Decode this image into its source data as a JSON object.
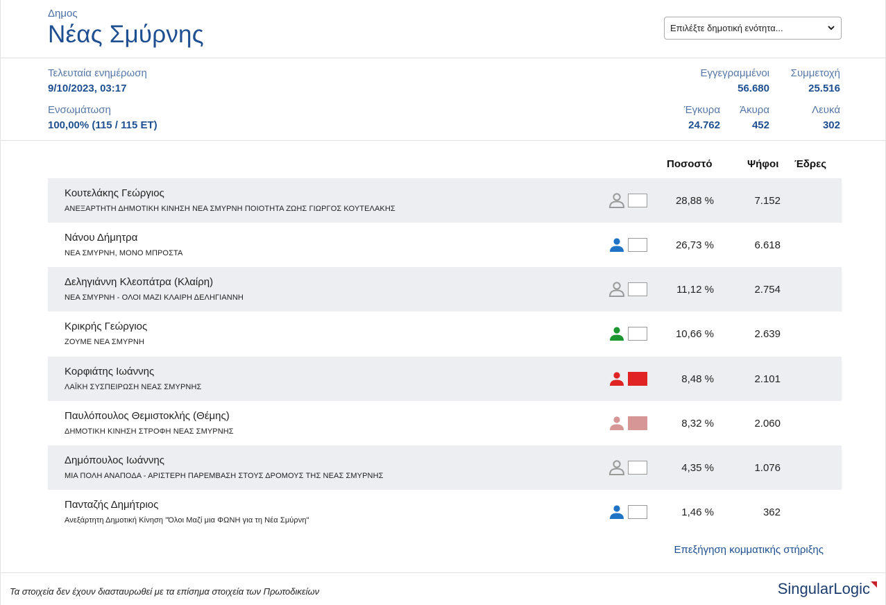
{
  "header": {
    "kind": "Δημος",
    "title": "Νέας Σμύρνης",
    "select_value": "Επιλέξτε δημοτική ενότητα..."
  },
  "stats": {
    "updated_label": "Τελευταία ενημέρωση",
    "updated_value": "9/10/2023, 03:17",
    "counted_label": "Ενσωμάτωση",
    "counted_value": "100,00% (115 / 115 ΕΤ)",
    "registered_label": "Εγγεγραμμένοι",
    "registered_value": "56.680",
    "turnout_label": "Συμμετοχή",
    "turnout_value": "25.516",
    "valid_label": "Έγκυρα",
    "valid_value": "24.762",
    "invalid_label": "Άκυρα",
    "invalid_value": "452",
    "blank_label": "Λευκά",
    "blank_value": "302"
  },
  "table": {
    "headers": {
      "percent": "Ποσοστό",
      "votes": "Ψήφοι",
      "seats": "Έδρες"
    },
    "rows": [
      {
        "name": "Κουτελάκης Γεώργιος",
        "party": "ΑΝΕΞΑΡΤΗΤΗ ΔΗΜΟΤΙΚΗ ΚΙΝΗΣΗ ΝΕΑ ΣΜΥΡΝΗ ΠΟΙΟΤΗΤΑ ΖΩΗΣ ΓΙΩΡΓΟΣ ΚΟΥΤΕΛΑΚΗΣ",
        "percent": "28,88 %",
        "votes": "7.152",
        "icon_color": "#9a9a9a",
        "icon_style": "outline",
        "swatch": "#ffffff"
      },
      {
        "name": "Νάνου Δήμητρα",
        "party": "ΝΕΑ ΣΜΥΡΝΗ, ΜΟΝΟ ΜΠΡΟΣΤΑ",
        "percent": "26,73 %",
        "votes": "6.618",
        "icon_color": "#1e73c7",
        "icon_style": "solid",
        "swatch": "#ffffff"
      },
      {
        "name": "Δεληγιάννη Κλεοπάτρα (Κλαίρη)",
        "party": "ΝΕΑ ΣΜΥΡΝΗ - ΟΛΟΙ ΜΑΖΙ ΚΛΑΙΡΗ ΔΕΛΗΓΙΑΝΝΗ",
        "percent": "11,12 %",
        "votes": "2.754",
        "icon_color": "#9a9a9a",
        "icon_style": "outline",
        "swatch": "#ffffff"
      },
      {
        "name": "Κρικρής Γεώργιος",
        "party": "ΖΟΥΜΕ ΝΕΑ ΣΜΥΡΝΗ",
        "percent": "10,66 %",
        "votes": "2.639",
        "icon_color": "#1b9630",
        "icon_style": "solid",
        "swatch": "#ffffff"
      },
      {
        "name": "Κορφιάτης Ιωάννης",
        "party": "ΛΑΪΚΗ ΣΥΣΠΕΙΡΩΣΗ ΝΕΑΣ ΣΜΥΡΝΗΣ",
        "percent": "8,48 %",
        "votes": "2.101",
        "icon_color": "#e02424",
        "icon_style": "solid",
        "swatch": "#e02424"
      },
      {
        "name": "Παυλόπουλος Θεμιστοκλής (Θέμης)",
        "party": "ΔΗΜΟΤΙΚΗ ΚΙΝΗΣΗ ΣΤΡΟΦΗ ΝΕΑΣ ΣΜΥΡΝΗΣ",
        "percent": "8,32 %",
        "votes": "2.060",
        "icon_color": "#d79696",
        "icon_style": "solid",
        "swatch": "#d79696"
      },
      {
        "name": "Δημόπουλος Ιωάννης",
        "party": "ΜΙΑ ΠΟΛΗ ΑΝΑΠΟΔΑ - ΑΡΙΣΤΕΡΗ ΠΑΡΕΜΒΑΣΗ ΣΤΟΥΣ ΔΡΟΜΟΥΣ ΤΗΣ ΝΕΑΣ ΣΜΥΡΝΗΣ",
        "percent": "4,35 %",
        "votes": "1.076",
        "icon_color": "#9a9a9a",
        "icon_style": "outline",
        "swatch": "#ffffff"
      },
      {
        "name": "Πανταζής Δημήτριος",
        "party": "Ανεξάρτητη Δημοτική Κίνηση \"Όλοι Μαζί μια ΦΩΝΗ για τη Νέα Σμύρνη\"",
        "percent": "1,46 %",
        "votes": "362",
        "icon_color": "#1e73c7",
        "icon_style": "solid",
        "swatch": "#ffffff"
      }
    ]
  },
  "explain_link": "Επεξήγηση κομματικής στήριξης",
  "footer": {
    "disclaimer": "Τα στοιχεία δεν έχουν διασταυρωθεί με τα επίσημα στοιχεία των Πρωτοδικείων",
    "logo_part1": "Singular",
    "logo_part2": "Logic",
    "logo_accent": "#c8202a"
  }
}
